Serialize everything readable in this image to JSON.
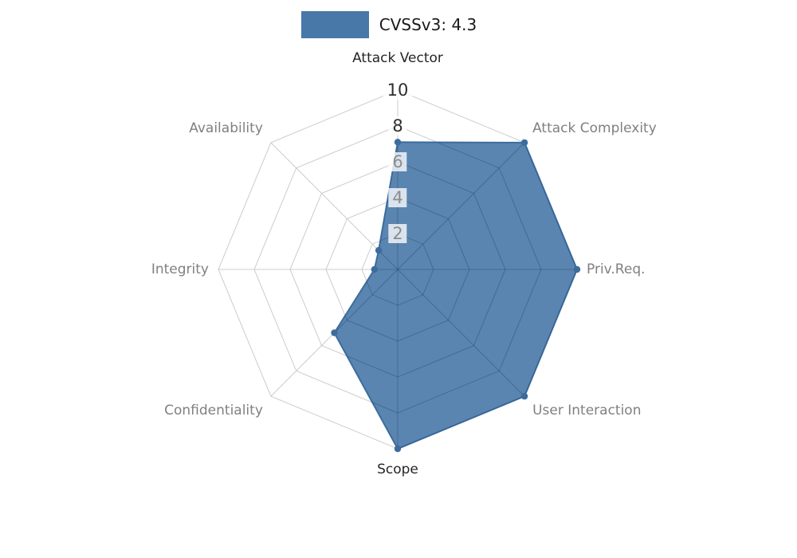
{
  "legend": {
    "label": "CVSSv3: 4.3",
    "swatch_color": "#4878a8"
  },
  "chart_data": {
    "type": "radar",
    "title": "CVSSv3: 4.3",
    "categories": [
      "Attack Vector",
      "Attack Complexity",
      "Priv.Req.",
      "User Interaction",
      "Scope",
      "Confidentiality",
      "Integrity",
      "Availability"
    ],
    "series": [
      {
        "name": "CVSSv3: 4.3",
        "values": [
          7.1,
          10,
          10,
          10,
          10,
          5.0,
          1.3,
          1.5
        ]
      }
    ],
    "radial_ticks": [
      {
        "value": 2,
        "color": "#8c8c8c"
      },
      {
        "value": 4,
        "color": "#8c8c8c"
      },
      {
        "value": 6,
        "color": "#8c8c8c"
      },
      {
        "value": 8,
        "color": "#2e2e2e"
      },
      {
        "value": 10,
        "color": "#2e2e2e"
      }
    ],
    "rlim": [
      0,
      10
    ],
    "grid": true,
    "legend_position": "top",
    "axis_label_colors": [
      "#262626",
      "#808080",
      "#808080",
      "#808080",
      "#262626",
      "#808080",
      "#808080",
      "#808080"
    ],
    "colors": {
      "fill": "#4878a8",
      "fill_opacity": 0.9,
      "stroke": "#3c6c9d",
      "point": "#3c6c9d",
      "grid": "#cccccc",
      "grid_over_fill": "rgba(30,50,75,0.28)",
      "tick_backdrop": "rgba(255,255,255,0.78)"
    }
  }
}
